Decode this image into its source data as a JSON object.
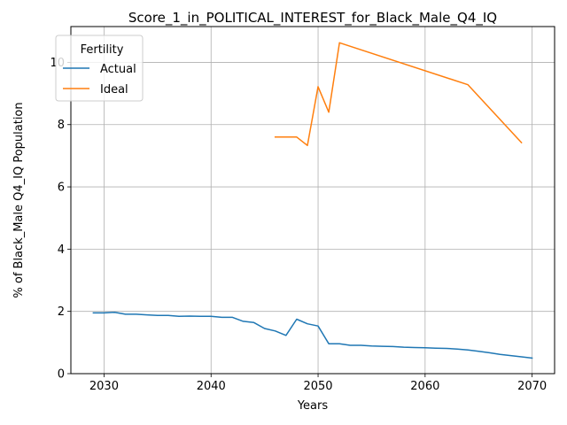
{
  "chart_data": {
    "type": "line",
    "title": "Score_1_in_POLITICAL_INTEREST_for_Black_Male_Q4_IQ",
    "xlabel": "Years",
    "ylabel": "% of Black_Male Q4_IQ Population",
    "xlim": [
      2026.9,
      2072.1
    ],
    "ylim": [
      0,
      11.15
    ],
    "xticks": [
      2030,
      2040,
      2050,
      2060,
      2070
    ],
    "yticks": [
      0,
      2,
      4,
      6,
      8,
      10
    ],
    "grid": true,
    "legend": {
      "title": "Fertility",
      "position": "top-left"
    },
    "series": [
      {
        "name": "Actual",
        "color": "#1f77b4",
        "x": [
          2029,
          2030,
          2031,
          2032,
          2033,
          2034,
          2035,
          2036,
          2037,
          2038,
          2039,
          2040,
          2041,
          2042,
          2043,
          2044,
          2045,
          2046,
          2047,
          2048,
          2049,
          2050,
          2051,
          2052,
          2053,
          2054,
          2055,
          2056,
          2057,
          2058,
          2059,
          2060,
          2061,
          2062,
          2063,
          2064,
          2065,
          2066,
          2067,
          2068,
          2069,
          2070
        ],
        "y": [
          1.95,
          1.95,
          1.97,
          1.91,
          1.91,
          1.89,
          1.87,
          1.87,
          1.84,
          1.85,
          1.84,
          1.84,
          1.81,
          1.81,
          1.68,
          1.64,
          1.45,
          1.37,
          1.23,
          1.75,
          1.6,
          1.53,
          0.96,
          0.96,
          0.91,
          0.91,
          0.89,
          0.88,
          0.87,
          0.85,
          0.84,
          0.83,
          0.82,
          0.81,
          0.79,
          0.76,
          0.72,
          0.67,
          0.62,
          0.58,
          0.54,
          0.5
        ]
      },
      {
        "name": "Ideal",
        "color": "#ff7f0e",
        "x": [
          2046,
          2047,
          2048,
          2049,
          2050,
          2051,
          2052,
          2064,
          2069
        ],
        "y": [
          7.6,
          7.6,
          7.6,
          7.33,
          9.22,
          8.4,
          10.63,
          9.28,
          7.42
        ]
      }
    ]
  }
}
